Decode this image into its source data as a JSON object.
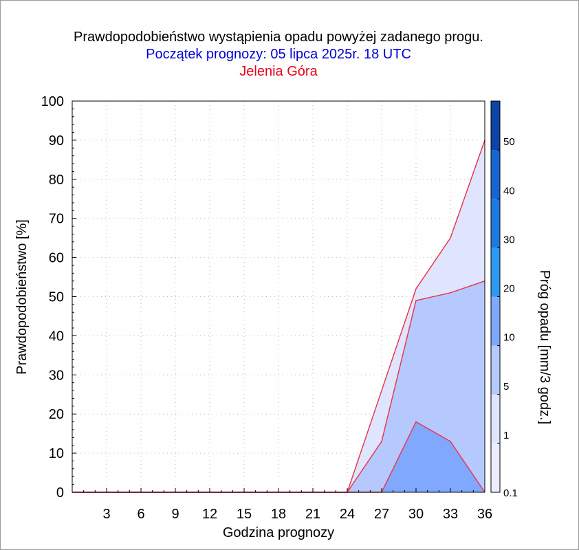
{
  "title": "Prawdopodobieństwo wystąpienia opadu powyżej zadanego progu.",
  "subtitle": "Początek prognozy: 05 lipca 2025r. 18 UTC",
  "location": "Jelenia Góra",
  "colors": {
    "title": "#000000",
    "subtitle": "#0000d8",
    "location": "#e8001c",
    "series_line": "#e8384f",
    "grid": "#b8b8b8"
  },
  "chart_data": {
    "type": "area",
    "xlabel": "Godzina prognozy",
    "ylabel": "Prawdopodobieństwo [%]",
    "xlim": [
      0,
      36
    ],
    "ylim": [
      0,
      100
    ],
    "x_ticks": [
      3,
      6,
      9,
      12,
      15,
      18,
      21,
      24,
      27,
      30,
      33,
      36
    ],
    "y_ticks": [
      0,
      10,
      20,
      30,
      40,
      50,
      60,
      70,
      80,
      90,
      100
    ],
    "grid": true,
    "x": [
      0,
      3,
      6,
      9,
      12,
      15,
      18,
      21,
      24,
      27,
      30,
      33,
      36
    ],
    "series": [
      {
        "threshold": "0.1",
        "color": "#dfe5ff",
        "values": [
          0,
          0,
          0,
          0,
          0,
          0,
          0,
          0,
          0,
          26,
          52,
          65,
          90
        ]
      },
      {
        "threshold": "1",
        "color": "#b6c9ff",
        "values": [
          0,
          0,
          0,
          0,
          0,
          0,
          0,
          0,
          0,
          13,
          49,
          51,
          54
        ]
      },
      {
        "threshold": "5",
        "color": "#80a8ff",
        "values": [
          0,
          0,
          0,
          0,
          0,
          0,
          0,
          0,
          0,
          0,
          18,
          13,
          0
        ]
      }
    ],
    "colorbar": {
      "label": "Próg opadu [mm/3 godz.]",
      "tick_labels": [
        "0.1",
        "1",
        "5",
        "10",
        "20",
        "30",
        "40",
        "50"
      ],
      "bands": [
        {
          "from": "0.1",
          "to": "1",
          "color": "#eceeff"
        },
        {
          "from": "1",
          "to": "5",
          "color": "#dfe5ff"
        },
        {
          "from": "5",
          "to": "10",
          "color": "#b6c9ff"
        },
        {
          "from": "10",
          "to": "20",
          "color": "#80a8ff"
        },
        {
          "from": "20",
          "to": "30",
          "color": "#2c9af0"
        },
        {
          "from": "30",
          "to": "40",
          "color": "#1d7ae0"
        },
        {
          "from": "40",
          "to": "50",
          "color": "#1766cf"
        },
        {
          "from": "50",
          "to": "",
          "color": "#0c44a8"
        }
      ]
    }
  }
}
